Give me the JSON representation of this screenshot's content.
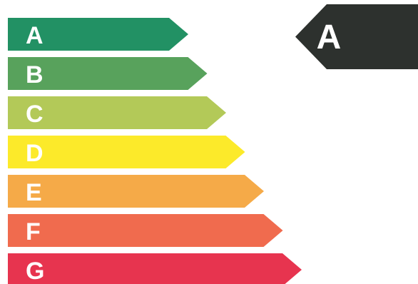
{
  "scale": {
    "classes": [
      {
        "label": "A",
        "color": "#229164"
      },
      {
        "label": "B",
        "color": "#58a25c"
      },
      {
        "label": "C",
        "color": "#b3c958"
      },
      {
        "label": "D",
        "color": "#fcea2a"
      },
      {
        "label": "E",
        "color": "#f5aa48"
      },
      {
        "label": "F",
        "color": "#f06b4e"
      },
      {
        "label": "G",
        "color": "#e7344f"
      }
    ]
  },
  "indicator": {
    "label": "A",
    "color": "#2d312e"
  }
}
